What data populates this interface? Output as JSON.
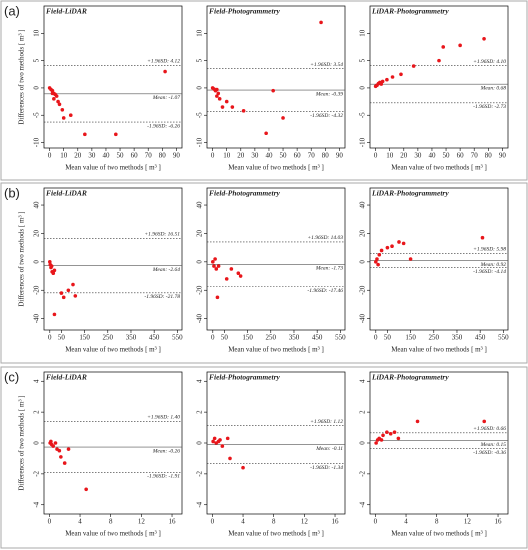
{
  "row_labels": [
    "(a)",
    "(b)",
    "(c)"
  ],
  "chart_data": [
    {
      "type": "scatter",
      "title": "Field-LiDAR",
      "ylabel": "Differences of two methods [ m³ ]",
      "xlabel": "Mean value of two methods [ m³ ]",
      "color": "#e8161b",
      "x": [
        0,
        1,
        2,
        3,
        4,
        5,
        2,
        3,
        6,
        7,
        9,
        10,
        15,
        25,
        47,
        82
      ],
      "values": [
        0,
        -0.3,
        -0.5,
        -1,
        -1.2,
        -1.5,
        -1,
        -2,
        -2.5,
        -3,
        -4,
        -5.5,
        -5,
        -8.5,
        -8.5,
        3
      ],
      "hlines": [
        {
          "label": "+1.96SD: 4.12",
          "value": 4.12,
          "style": "dashed"
        },
        {
          "label": "Mean: -1.07",
          "value": -1.07,
          "style": "solid"
        },
        {
          "label": "-1.96SD: -6.26",
          "value": -6.26,
          "style": "dashed"
        }
      ],
      "xlim": [
        -4,
        94
      ],
      "xticks": [
        0,
        10,
        20,
        30,
        40,
        50,
        60,
        70,
        80,
        90
      ],
      "ylim": [
        -11,
        15
      ],
      "yticks": [
        -10,
        -5,
        0,
        5,
        10
      ]
    },
    {
      "type": "scatter",
      "title": "Field-Photogrammetry",
      "xlabel": "Mean value of two methods [ m³ ]",
      "color": "#e8161b",
      "x": [
        0,
        1,
        2,
        3,
        4,
        5,
        3,
        7,
        10,
        14,
        22,
        38,
        43,
        50,
        77
      ],
      "values": [
        0,
        -0.2,
        -0.5,
        -0.3,
        -1,
        -2,
        -1.5,
        -3.5,
        -2.5,
        -3.5,
        -4.2,
        -8.3,
        -0.5,
        -5.5,
        12
      ],
      "hlines": [
        {
          "label": "+1.96SD: 3.54",
          "value": 3.54,
          "style": "dashed"
        },
        {
          "label": "Mean: -0.39",
          "value": -0.39,
          "style": "solid"
        },
        {
          "label": "-1.96SD: -4.32",
          "value": -4.32,
          "style": "dashed"
        }
      ],
      "xlim": [
        -4,
        94
      ],
      "xticks": [
        0,
        10,
        20,
        30,
        40,
        50,
        60,
        70,
        80,
        90
      ],
      "ylim": [
        -11,
        15
      ],
      "yticks": [
        -10,
        -5,
        0,
        5,
        10
      ]
    },
    {
      "type": "scatter",
      "title": "LiDAR-Photogrammetry",
      "xlabel": "Mean value of two methods [ m³ ]",
      "color": "#e8161b",
      "x": [
        0,
        1,
        2,
        3,
        4,
        5,
        8,
        12,
        18,
        27,
        45,
        48,
        60,
        77
      ],
      "values": [
        0.3,
        0.5,
        0.8,
        1,
        0.7,
        1.2,
        1.5,
        2,
        2.5,
        4,
        5,
        7.5,
        7.8,
        9
      ],
      "hlines": [
        {
          "label": "+1.96SD: 4.10",
          "value": 4.1,
          "style": "dashed"
        },
        {
          "label": "Mean: 0.68",
          "value": 0.68,
          "style": "solid"
        },
        {
          "label": "-1.96SD: -2.73",
          "value": -2.73,
          "style": "dashed"
        }
      ],
      "xlim": [
        -4,
        94
      ],
      "xticks": [
        0,
        10,
        20,
        30,
        40,
        50,
        60,
        70,
        80,
        90
      ],
      "ylim": [
        -11,
        15
      ],
      "yticks": [
        -10,
        -5,
        0,
        5,
        10
      ]
    },
    {
      "type": "scatter",
      "title": "Field-LiDAR",
      "ylabel": "Differences of two methods [ m³ ]",
      "xlabel": "Mean value of two methods [ m³ ]",
      "color": "#e8161b",
      "x": [
        0,
        2,
        5,
        8,
        10,
        15,
        20,
        50,
        60,
        80,
        100,
        110,
        20
      ],
      "values": [
        0,
        -2,
        -4,
        -3,
        -7,
        -8,
        -6,
        -22,
        -25,
        -20,
        -16,
        -24,
        -37
      ],
      "hlines": [
        {
          "label": "+1.96SD: 16.51",
          "value": 16.51,
          "style": "dashed"
        },
        {
          "label": "Mean: -2.64",
          "value": -2.64,
          "style": "solid"
        },
        {
          "label": "-1.96SD: -21.78",
          "value": -21.78,
          "style": "dashed"
        }
      ],
      "xlim": [
        -25,
        570
      ],
      "xticks": [
        0,
        50,
        150,
        250,
        350,
        450,
        550
      ],
      "ylim": [
        -48,
        52
      ],
      "yticks": [
        -40,
        -20,
        0,
        20,
        40
      ]
    },
    {
      "type": "scatter",
      "title": "Field-Photogrammetry",
      "xlabel": "Mean value of two methods [ m³ ]",
      "color": "#e8161b",
      "x": [
        0,
        5,
        10,
        15,
        20,
        25,
        60,
        80,
        110,
        120
      ],
      "values": [
        0,
        -3,
        2,
        -5,
        -25,
        -3,
        -12,
        -5,
        -8,
        -10
      ],
      "hlines": [
        {
          "label": "+1.96SD: 14.03",
          "value": 14.03,
          "style": "dashed"
        },
        {
          "label": "Mean: -1.73",
          "value": -1.73,
          "style": "solid"
        },
        {
          "label": "-1.96SD: -17.46",
          "value": -17.46,
          "style": "dashed"
        }
      ],
      "xlim": [
        -25,
        570
      ],
      "xticks": [
        0,
        50,
        150,
        250,
        350,
        450,
        550
      ],
      "ylim": [
        -48,
        52
      ],
      "yticks": [
        -40,
        -20,
        0,
        20,
        40
      ]
    },
    {
      "type": "scatter",
      "title": "LiDAR-Photogrammetry",
      "xlabel": "Mean value of two methods [ m³ ]",
      "color": "#e8161b",
      "x": [
        0,
        5,
        10,
        15,
        25,
        50,
        70,
        100,
        120,
        150,
        460
      ],
      "values": [
        0,
        2,
        -2,
        5,
        8,
        10,
        11,
        14,
        13,
        2,
        17
      ],
      "hlines": [
        {
          "label": "+1.96SD: 5.98",
          "value": 5.98,
          "style": "dashed"
        },
        {
          "label": "Mean: 0.92",
          "value": 0.92,
          "style": "solid"
        },
        {
          "label": "-1.96SD: -4.14",
          "value": -4.14,
          "style": "dashed"
        }
      ],
      "xlim": [
        -25,
        570
      ],
      "xticks": [
        0,
        50,
        150,
        250,
        350,
        450,
        550
      ],
      "ylim": [
        -48,
        52
      ],
      "yticks": [
        -40,
        -20,
        0,
        20,
        40
      ]
    },
    {
      "type": "scatter",
      "title": "Field-LiDAR",
      "ylabel": "Differences of two methods [ m³ ]",
      "xlabel": "Mean value of two methods [ m³ ]",
      "color": "#e8161b",
      "x": [
        0.1,
        0.2,
        0.3,
        0.5,
        0.8,
        1,
        1.3,
        1.5,
        2,
        2.5,
        4.8
      ],
      "values": [
        0,
        0.1,
        -0.1,
        -0.2,
        0,
        -0.4,
        -0.5,
        -0.9,
        -1.3,
        -0.4,
        -3
      ],
      "hlines": [
        {
          "label": "+1.96SD: 1.40",
          "value": 1.4,
          "style": "dashed"
        },
        {
          "label": "Mean: -0.26",
          "value": -0.26,
          "style": "solid"
        },
        {
          "label": "-1.96SD: -1.91",
          "value": -1.91,
          "style": "dashed"
        }
      ],
      "xlim": [
        -0.7,
        17.3
      ],
      "xticks": [
        0,
        4,
        8,
        12,
        16
      ],
      "ylim": [
        -4.6,
        4.6
      ],
      "yticks": [
        -4,
        -2,
        0,
        2,
        4
      ]
    },
    {
      "type": "scatter",
      "title": "Field-Photogrammetry",
      "xlabel": "Mean value of two methods [ m³ ]",
      "color": "#e8161b",
      "x": [
        0.1,
        0.3,
        0.5,
        0.8,
        1,
        1.3,
        2,
        2.3,
        4
      ],
      "values": [
        0.1,
        0.3,
        0,
        0.1,
        0.2,
        -0.2,
        0.3,
        -1,
        -1.6
      ],
      "hlines": [
        {
          "label": "+1.96SD: 1.12",
          "value": 1.12,
          "style": "dashed"
        },
        {
          "label": "Mean: -0.11",
          "value": -0.11,
          "style": "solid"
        },
        {
          "label": "-1.96SD: -1.34",
          "value": -1.34,
          "style": "dashed"
        }
      ],
      "xlim": [
        -0.7,
        17.3
      ],
      "xticks": [
        0,
        4,
        8,
        12,
        16
      ],
      "ylim": [
        -4.6,
        4.6
      ],
      "yticks": [
        -4,
        -2,
        0,
        2,
        4
      ]
    },
    {
      "type": "scatter",
      "title": "LiDAR-Photogrammetry",
      "xlabel": "Mean value of two methods [ m³ ]",
      "color": "#e8161b",
      "x": [
        0.1,
        0.3,
        0.5,
        0.8,
        1,
        1.5,
        2,
        2.5,
        3,
        5.5,
        14.2
      ],
      "values": [
        0,
        0.2,
        0.3,
        0.2,
        0.5,
        0.7,
        0.6,
        0.7,
        0.3,
        1.4,
        1.4
      ],
      "hlines": [
        {
          "label": "+1.96SD: 0.66",
          "value": 0.66,
          "style": "dashed"
        },
        {
          "label": "Mean: 0.15",
          "value": 0.15,
          "style": "solid"
        },
        {
          "label": "-1.96SD: -0.36",
          "value": -0.36,
          "style": "dashed"
        }
      ],
      "xlim": [
        -0.7,
        17.3
      ],
      "xticks": [
        0,
        4,
        8,
        12,
        16
      ],
      "ylim": [
        -4.6,
        4.6
      ],
      "yticks": [
        -4,
        -2,
        0,
        2,
        4
      ]
    }
  ]
}
